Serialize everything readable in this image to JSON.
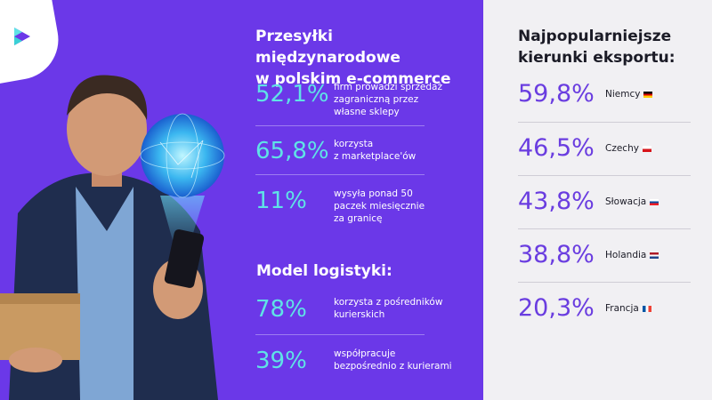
{
  "left_panel": {
    "title_line1": "Przesyłki międzynarodowe",
    "title_line2": "w polskim e-commerce",
    "stats": [
      {
        "value": "52,1%",
        "desc": [
          "firm prowadzi sprzedaż",
          "zagraniczną przez",
          "własne sklepy"
        ]
      },
      {
        "value": "65,8%",
        "desc": [
          "korzysta",
          "z marketplace'ów"
        ]
      },
      {
        "value": "11%",
        "desc": [
          "wysyła ponad 50",
          "paczek miesięcznie",
          "za granicę"
        ]
      }
    ],
    "model_title": "Model logistyki:",
    "model_stats": [
      {
        "value": "78%",
        "desc": [
          "korzysta z pośredników",
          "kurierskich"
        ]
      },
      {
        "value": "39%",
        "desc": [
          "współpracuje",
          "bezpośrednio z kurierami"
        ]
      }
    ]
  },
  "right_panel": {
    "title_line1": "Najpopularniejsze",
    "title_line2": "kierunki eksportu:",
    "destinations": [
      {
        "value": "59,8%",
        "country": "Niemcy",
        "flag": "de"
      },
      {
        "value": "46,5%",
        "country": "Czechy",
        "flag": "cz"
      },
      {
        "value": "43,8%",
        "country": "Słowacja",
        "flag": "sk"
      },
      {
        "value": "38,8%",
        "country": "Holandia",
        "flag": "nl"
      },
      {
        "value": "20,3%",
        "country": "Francja",
        "flag": "fr"
      }
    ]
  },
  "colors": {
    "left_background": "#6b38e8",
    "right_background": "#f1f0f3",
    "accent_cyan": "#5fe3e6",
    "accent_purple": "#6a3de0"
  }
}
